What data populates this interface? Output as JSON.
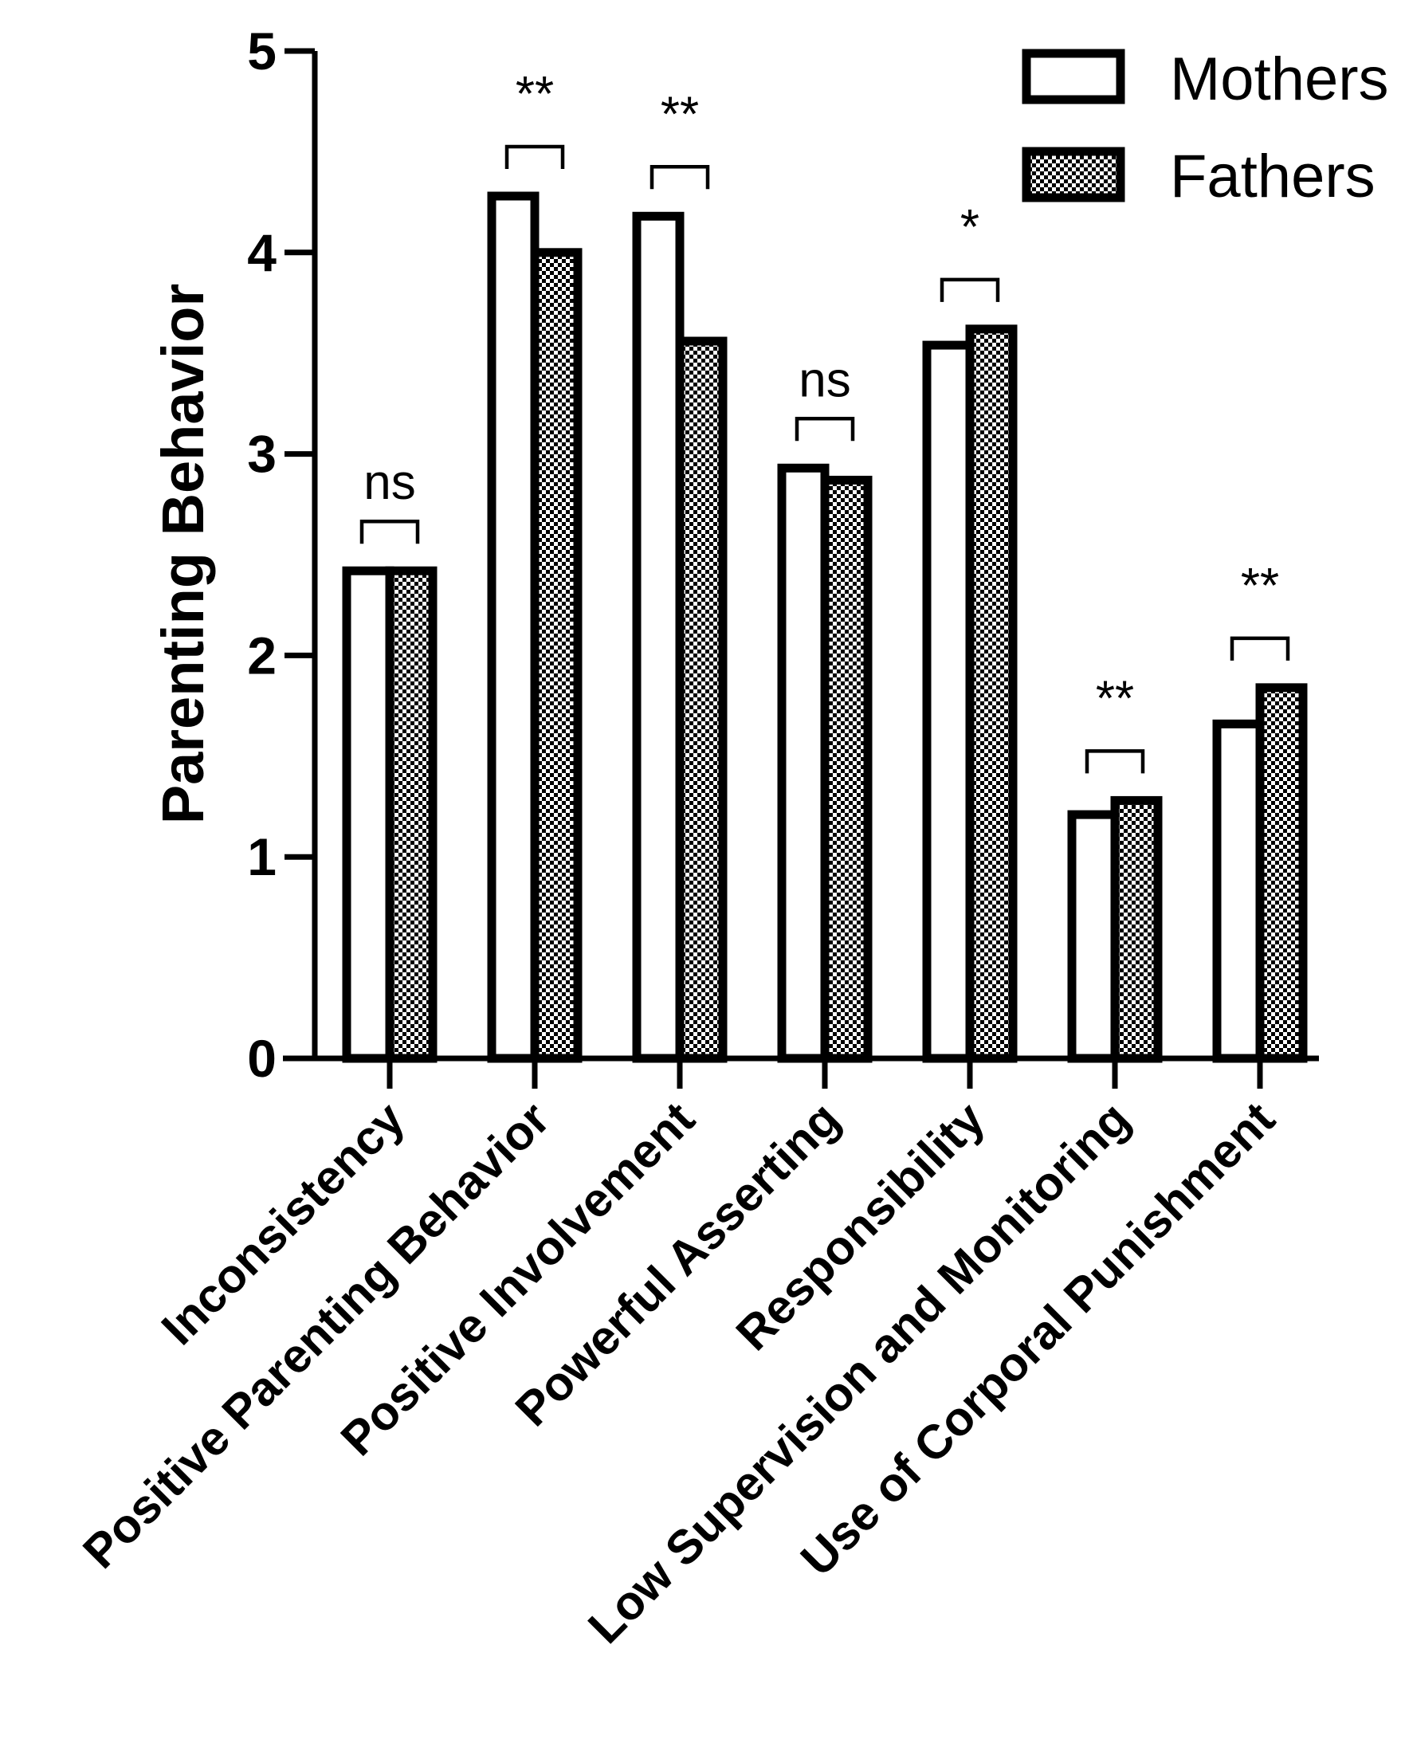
{
  "chart_data": {
    "type": "bar",
    "title": "",
    "xlabel": "",
    "ylabel": "Parenting Behavior",
    "ylim": [
      0,
      5
    ],
    "yticks": [
      0,
      1,
      2,
      3,
      4,
      5
    ],
    "categories": [
      "Inconsistency",
      "Positive Parenting Behavior",
      "Positive Involvement",
      "Powerful Asserting",
      "Responsibility",
      "Low Supervision and Monitoring",
      "Use of Corporal Punishment"
    ],
    "series": [
      {
        "name": "Mothers",
        "pattern": "white",
        "values": [
          2.42,
          4.28,
          4.18,
          2.93,
          3.54,
          1.21,
          1.66
        ]
      },
      {
        "name": "Fathers",
        "pattern": "checkered",
        "values": [
          2.42,
          4.0,
          3.56,
          2.87,
          3.62,
          1.28,
          1.84
        ]
      }
    ],
    "significance": [
      "ns",
      "**",
      "**",
      "ns",
      "*",
      "**",
      "**"
    ],
    "legend": {
      "placement": "top-right",
      "entries": [
        "Mothers",
        "Fathers"
      ]
    },
    "grid": false
  },
  "colors": {
    "stroke": "#000000",
    "mothers_fill": "#ffffff",
    "fathers_fill_dark": "#000000",
    "fathers_fill_light": "#ffffff"
  }
}
